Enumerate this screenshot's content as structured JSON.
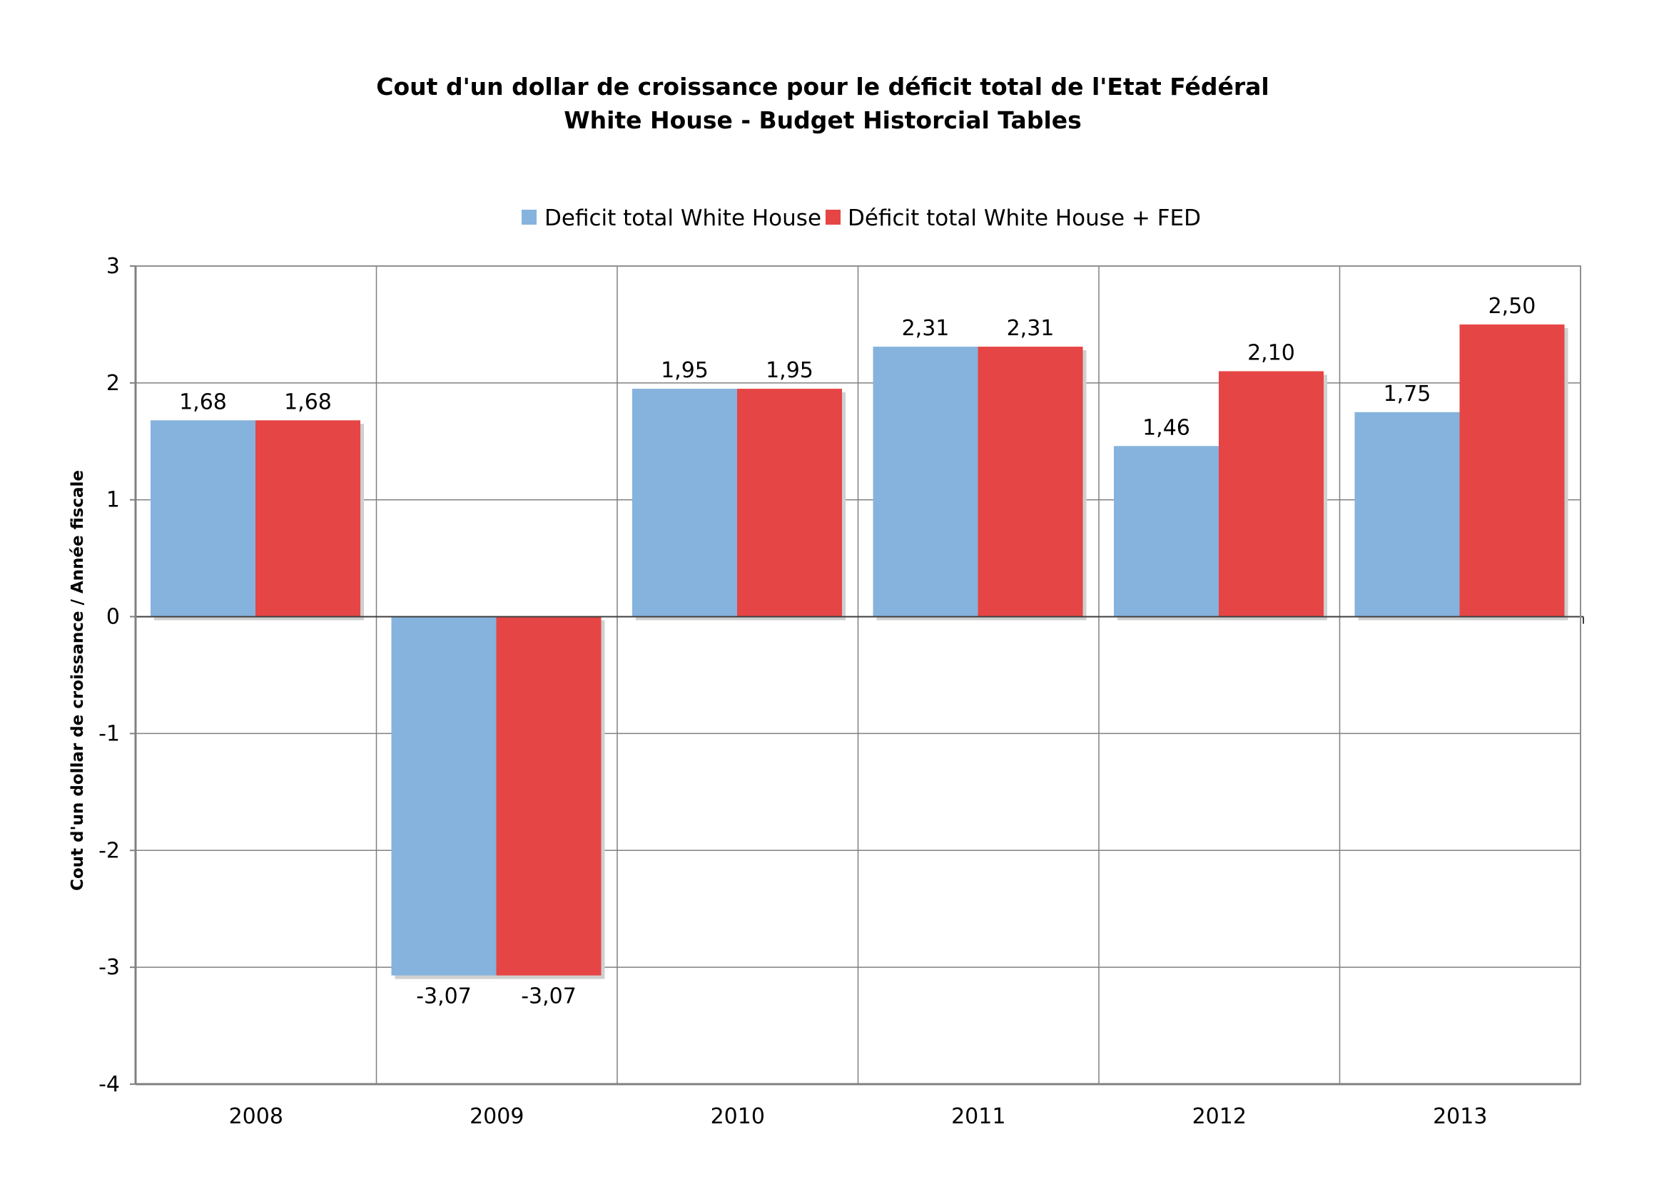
{
  "chart_data": {
    "type": "bar",
    "title": "Cout d'un dollar de croissance pour le déficit total de l'Etat Fédéral",
    "subtitle": "White House  - Budget Historcial Tables",
    "xlabel": "",
    "ylabel": "Cout d'un dollar de croissance  / Année fiscale",
    "categories": [
      "2008",
      "2009",
      "2010",
      "2011",
      "2012",
      "2013"
    ],
    "series": [
      {
        "name": "Deficit total White House",
        "color": "#85B3DD",
        "values": [
          1.68,
          -3.07,
          1.95,
          2.31,
          1.46,
          1.75
        ],
        "labels": [
          "1,68",
          "-3,07",
          "1,95",
          "2,31",
          "1,46",
          "1,75"
        ]
      },
      {
        "name": "Déficit total White House + FED",
        "color": "#E64545",
        "values": [
          1.68,
          -3.07,
          1.95,
          2.31,
          2.1,
          2.5
        ],
        "labels": [
          "1,68",
          "-3,07",
          "1,95",
          "2,31",
          "2,10",
          "2,50"
        ]
      }
    ],
    "ylim": [
      -4,
      3
    ],
    "yticks": [
      "3",
      "2",
      "1",
      "0",
      "-1",
      "-2",
      "-3",
      "-4"
    ],
    "grid": true,
    "legend_position": "top"
  }
}
